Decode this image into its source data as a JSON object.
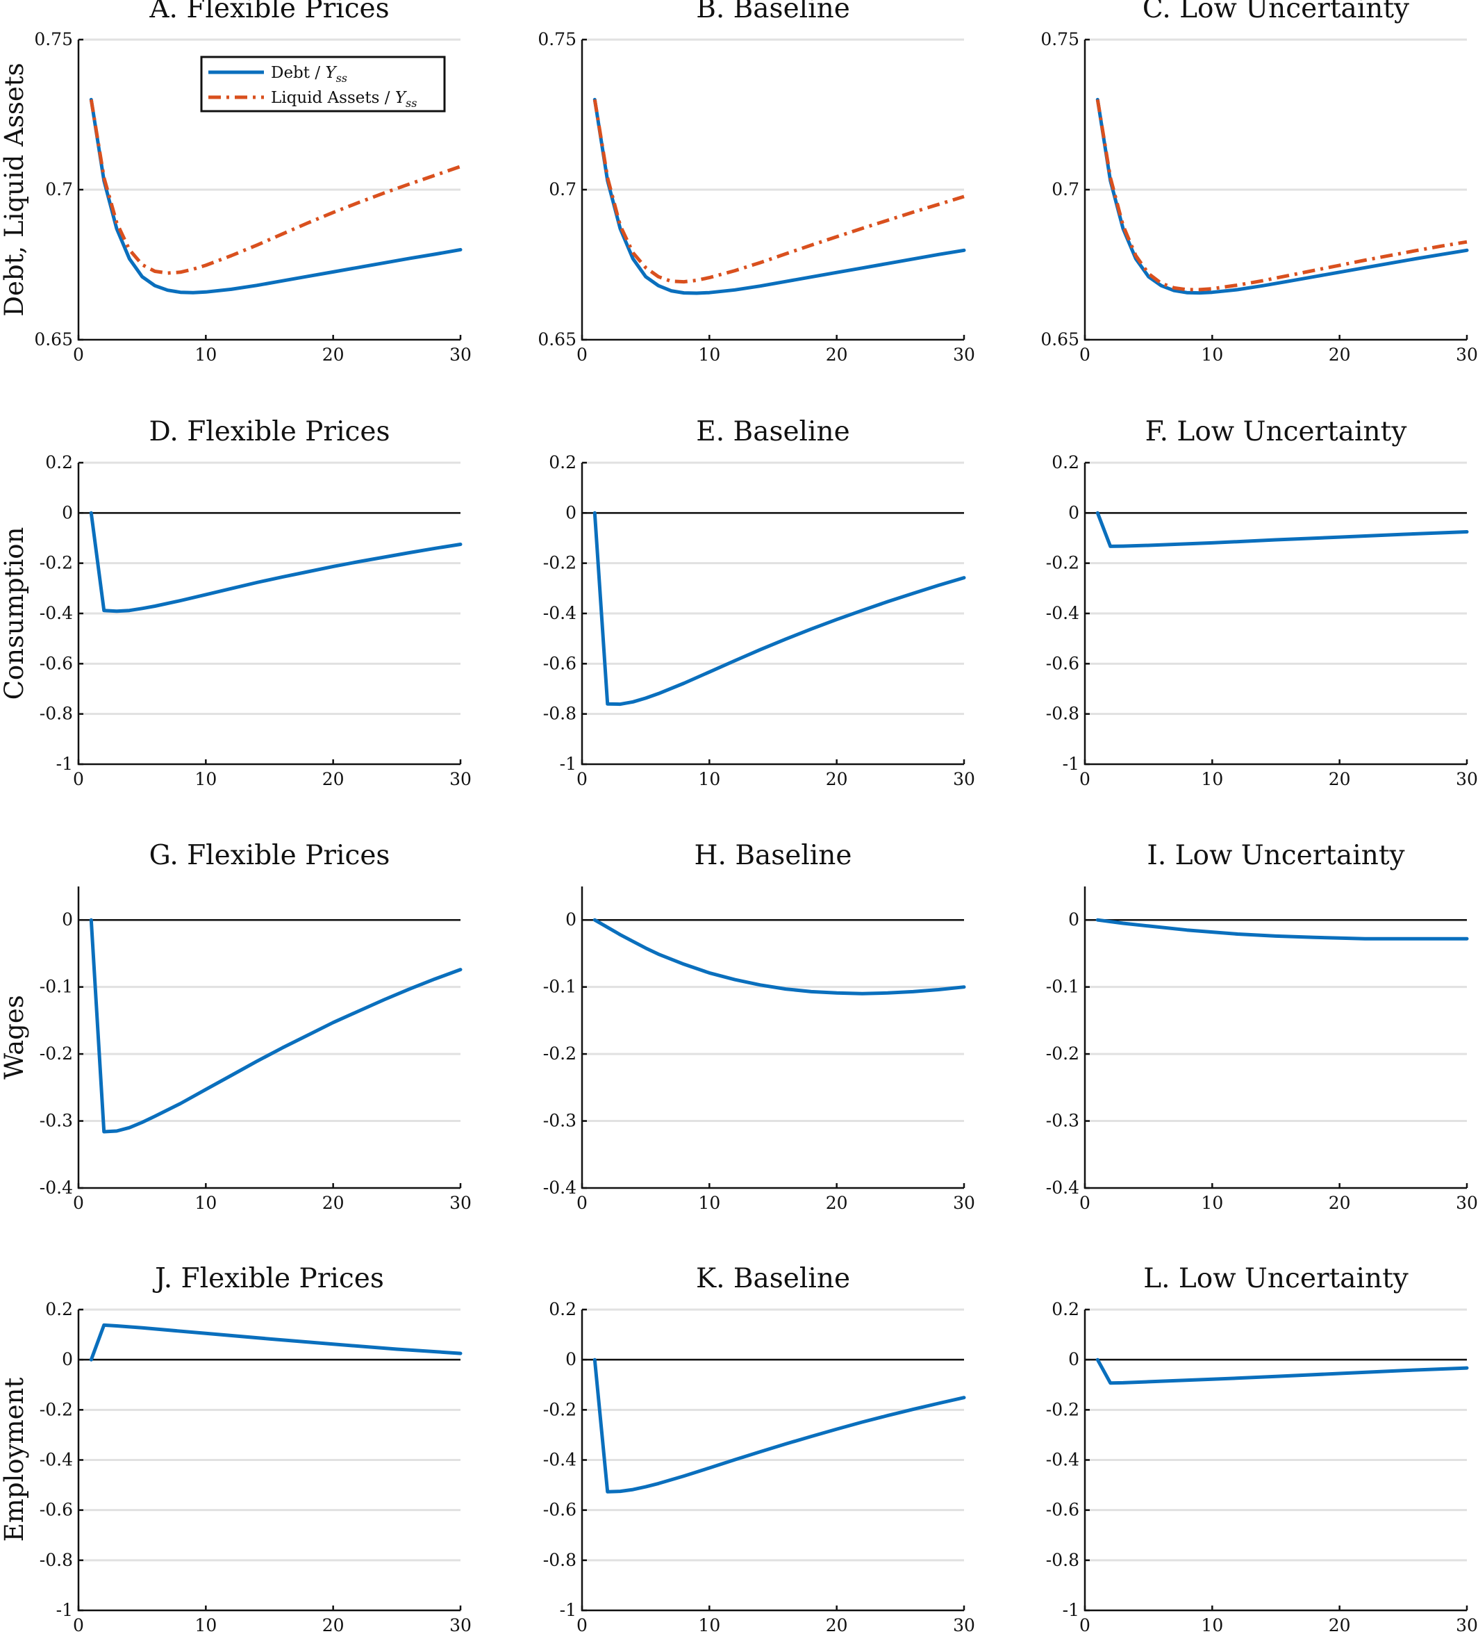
{
  "colors": {
    "debt": "#0a6fbd",
    "liquid_assets": "#d9501e"
  },
  "legend": [
    {
      "series": "debt",
      "text": "Debt / ",
      "sym": "Y",
      "sub": "ss",
      "style": "solid"
    },
    {
      "series": "liquid_assets",
      "text": "Liquid Assets / ",
      "sym": "Y",
      "sub": "ss",
      "style": "dashdot"
    }
  ],
  "legend_placement": "top-center of panel A",
  "row_labels": [
    "Debt, Liquid Assets",
    "Consumption",
    "Wages",
    "Employment"
  ],
  "chart_data": [
    {
      "panel": "A",
      "title": "A. Flexible Prices",
      "type": "line",
      "xlim": [
        0,
        30
      ],
      "ylim": [
        0.65,
        0.75
      ],
      "xticks": [
        0,
        10,
        20,
        30
      ],
      "yticks": [
        0.65,
        0.7,
        0.75
      ],
      "ytick_labels": [
        "0.65",
        "0.7",
        "0.75"
      ],
      "zero_line": false,
      "grid": "horizontal",
      "x": [
        1,
        2,
        3,
        4,
        5,
        6,
        7,
        8,
        9,
        10,
        12,
        14,
        16,
        18,
        20,
        22,
        24,
        26,
        28,
        30
      ],
      "series": [
        {
          "key": "debt",
          "values": [
            0.73,
            0.703,
            0.687,
            0.677,
            0.671,
            0.668,
            0.6665,
            0.6658,
            0.6657,
            0.6659,
            0.6668,
            0.6681,
            0.6696,
            0.6711,
            0.6726,
            0.6741,
            0.6756,
            0.6771,
            0.6785,
            0.68
          ]
        },
        {
          "key": "liquid_assets",
          "values": [
            0.73,
            0.704,
            0.689,
            0.68,
            0.675,
            0.6728,
            0.6722,
            0.6725,
            0.6735,
            0.6748,
            0.678,
            0.6815,
            0.6852,
            0.6889,
            0.6924,
            0.6957,
            0.6989,
            0.7019,
            0.7048,
            0.7077
          ]
        }
      ]
    },
    {
      "panel": "B",
      "title": "B. Baseline",
      "type": "line",
      "xlim": [
        0,
        30
      ],
      "ylim": [
        0.65,
        0.75
      ],
      "xticks": [
        0,
        10,
        20,
        30
      ],
      "yticks": [
        0.65,
        0.7,
        0.75
      ],
      "ytick_labels": [
        "0.65",
        "0.7",
        "0.75"
      ],
      "zero_line": false,
      "grid": "horizontal",
      "x": [
        1,
        2,
        3,
        4,
        5,
        6,
        7,
        8,
        9,
        10,
        12,
        14,
        16,
        18,
        20,
        22,
        24,
        26,
        28,
        30
      ],
      "series": [
        {
          "key": "debt",
          "values": [
            0.73,
            0.703,
            0.687,
            0.677,
            0.671,
            0.668,
            0.6663,
            0.6656,
            0.6655,
            0.6657,
            0.6666,
            0.6679,
            0.6694,
            0.6709,
            0.6724,
            0.6739,
            0.6754,
            0.6769,
            0.6784,
            0.6798
          ]
        },
        {
          "key": "liquid_assets",
          "values": [
            0.73,
            0.704,
            0.688,
            0.679,
            0.674,
            0.671,
            0.6695,
            0.6693,
            0.6698,
            0.6707,
            0.673,
            0.6757,
            0.6786,
            0.6815,
            0.6843,
            0.6871,
            0.6898,
            0.6925,
            0.6951,
            0.6977
          ]
        }
      ]
    },
    {
      "panel": "C",
      "title": "C. Low Uncertainty",
      "type": "line",
      "xlim": [
        0,
        30
      ],
      "ylim": [
        0.65,
        0.75
      ],
      "xticks": [
        0,
        10,
        20,
        30
      ],
      "yticks": [
        0.65,
        0.7,
        0.75
      ],
      "ytick_labels": [
        "0.65",
        "0.7",
        "0.75"
      ],
      "zero_line": false,
      "grid": "horizontal",
      "x": [
        1,
        2,
        3,
        4,
        5,
        6,
        7,
        8,
        9,
        10,
        12,
        14,
        16,
        18,
        20,
        22,
        24,
        26,
        28,
        30
      ],
      "series": [
        {
          "key": "debt",
          "values": [
            0.73,
            0.703,
            0.687,
            0.677,
            0.671,
            0.668,
            0.6664,
            0.6657,
            0.6656,
            0.6658,
            0.6667,
            0.668,
            0.6695,
            0.671,
            0.6725,
            0.674,
            0.6755,
            0.677,
            0.6784,
            0.6798
          ]
        },
        {
          "key": "liquid_assets",
          "values": [
            0.73,
            0.704,
            0.688,
            0.678,
            0.672,
            0.6688,
            0.6673,
            0.6667,
            0.6667,
            0.667,
            0.6682,
            0.6697,
            0.6714,
            0.6731,
            0.6748,
            0.6765,
            0.6781,
            0.6797,
            0.6812,
            0.6826
          ]
        }
      ]
    },
    {
      "panel": "D",
      "title": "D. Flexible Prices",
      "type": "line",
      "xlim": [
        0,
        30
      ],
      "ylim": [
        -1,
        0.2
      ],
      "xticks": [
        0,
        10,
        20,
        30
      ],
      "yticks": [
        -1,
        -0.8,
        -0.6,
        -0.4,
        -0.2,
        0,
        0.2
      ],
      "ytick_labels": [
        "-1",
        "-0.8",
        "-0.6",
        "-0.4",
        "-0.2",
        "0",
        "0.2"
      ],
      "zero_line": true,
      "grid": "horizontal",
      "x": [
        1,
        2,
        3,
        4,
        5,
        6,
        8,
        10,
        12,
        14,
        16,
        18,
        20,
        22,
        24,
        26,
        28,
        30
      ],
      "series": [
        {
          "key": "debt",
          "values": [
            0,
            -0.388,
            -0.391,
            -0.388,
            -0.38,
            -0.371,
            -0.349,
            -0.325,
            -0.301,
            -0.277,
            -0.255,
            -0.234,
            -0.213,
            -0.194,
            -0.176,
            -0.158,
            -0.141,
            -0.125
          ]
        }
      ]
    },
    {
      "panel": "E",
      "title": "E. Baseline",
      "type": "line",
      "xlim": [
        0,
        30
      ],
      "ylim": [
        -1,
        0.2
      ],
      "xticks": [
        0,
        10,
        20,
        30
      ],
      "yticks": [
        -1,
        -0.8,
        -0.6,
        -0.4,
        -0.2,
        0,
        0.2
      ],
      "ytick_labels": [
        "-1",
        "-0.8",
        "-0.6",
        "-0.4",
        "-0.2",
        "0",
        "0.2"
      ],
      "zero_line": true,
      "grid": "horizontal",
      "x": [
        1,
        2,
        3,
        4,
        5,
        6,
        8,
        10,
        12,
        14,
        16,
        18,
        20,
        22,
        24,
        26,
        28,
        30
      ],
      "series": [
        {
          "key": "debt",
          "values": [
            0,
            -0.76,
            -0.761,
            -0.752,
            -0.737,
            -0.719,
            -0.678,
            -0.633,
            -0.588,
            -0.544,
            -0.502,
            -0.462,
            -0.424,
            -0.388,
            -0.353,
            -0.32,
            -0.288,
            -0.258
          ]
        }
      ]
    },
    {
      "panel": "F",
      "title": "F. Low Uncertainty",
      "type": "line",
      "xlim": [
        0,
        30
      ],
      "ylim": [
        -1,
        0.2
      ],
      "xticks": [
        0,
        10,
        20,
        30
      ],
      "yticks": [
        -1,
        -0.8,
        -0.6,
        -0.4,
        -0.2,
        0,
        0.2
      ],
      "ytick_labels": [
        "-1",
        "-0.8",
        "-0.6",
        "-0.4",
        "-0.2",
        "0",
        "0.2"
      ],
      "zero_line": true,
      "grid": "horizontal",
      "x": [
        1,
        2,
        3,
        5,
        10,
        15,
        20,
        25,
        30
      ],
      "series": [
        {
          "key": "debt",
          "values": [
            0,
            -0.133,
            -0.132,
            -0.129,
            -0.119,
            -0.107,
            -0.096,
            -0.085,
            -0.075
          ]
        }
      ]
    },
    {
      "panel": "G",
      "title": "G. Flexible Prices",
      "type": "line",
      "xlim": [
        0,
        30
      ],
      "ylim": [
        -0.4,
        0.05
      ],
      "xticks": [
        0,
        10,
        20,
        30
      ],
      "yticks": [
        -0.4,
        -0.3,
        -0.2,
        -0.1,
        0
      ],
      "ytick_labels": [
        "-0.4",
        "-0.3",
        "-0.2",
        "-0.1",
        "0"
      ],
      "zero_line": true,
      "grid": "horizontal",
      "x": [
        1,
        2,
        3,
        4,
        5,
        6,
        8,
        10,
        12,
        14,
        16,
        18,
        20,
        22,
        24,
        26,
        28,
        30
      ],
      "series": [
        {
          "key": "debt",
          "values": [
            0,
            -0.316,
            -0.315,
            -0.31,
            -0.302,
            -0.293,
            -0.274,
            -0.253,
            -0.232,
            -0.211,
            -0.191,
            -0.172,
            -0.153,
            -0.136,
            -0.119,
            -0.103,
            -0.088,
            -0.074
          ]
        }
      ]
    },
    {
      "panel": "H",
      "title": "H. Baseline",
      "type": "line",
      "xlim": [
        0,
        30
      ],
      "ylim": [
        -0.4,
        0.05
      ],
      "xticks": [
        0,
        10,
        20,
        30
      ],
      "yticks": [
        -0.4,
        -0.3,
        -0.2,
        -0.1,
        0
      ],
      "ytick_labels": [
        "-0.4",
        "-0.3",
        "-0.2",
        "-0.1",
        "0"
      ],
      "zero_line": true,
      "grid": "horizontal",
      "x": [
        1,
        2,
        3,
        4,
        5,
        6,
        8,
        10,
        12,
        14,
        16,
        18,
        20,
        22,
        24,
        26,
        28,
        30
      ],
      "series": [
        {
          "key": "debt",
          "values": [
            0,
            -0.011,
            -0.022,
            -0.032,
            -0.042,
            -0.051,
            -0.066,
            -0.079,
            -0.089,
            -0.097,
            -0.103,
            -0.107,
            -0.109,
            -0.11,
            -0.109,
            -0.107,
            -0.104,
            -0.1
          ]
        }
      ]
    },
    {
      "panel": "I",
      "title": "I. Low Uncertainty",
      "type": "line",
      "xlim": [
        0,
        30
      ],
      "ylim": [
        -0.4,
        0.05
      ],
      "xticks": [
        0,
        10,
        20,
        30
      ],
      "yticks": [
        -0.4,
        -0.3,
        -0.2,
        -0.1,
        0
      ],
      "ytick_labels": [
        "-0.4",
        "-0.3",
        "-0.2",
        "-0.1",
        "0"
      ],
      "zero_line": true,
      "grid": "horizontal",
      "x": [
        1,
        3,
        5,
        8,
        10,
        12,
        15,
        18,
        20,
        22,
        25,
        28,
        30
      ],
      "series": [
        {
          "key": "debt",
          "values": [
            0,
            -0.005,
            -0.009,
            -0.015,
            -0.018,
            -0.021,
            -0.024,
            -0.026,
            -0.027,
            -0.028,
            -0.028,
            -0.028,
            -0.028
          ]
        }
      ]
    },
    {
      "panel": "J",
      "title": "J. Flexible Prices",
      "type": "line",
      "xlim": [
        0,
        30
      ],
      "ylim": [
        -1,
        0.2
      ],
      "xticks": [
        0,
        10,
        20,
        30
      ],
      "yticks": [
        -1,
        -0.8,
        -0.6,
        -0.4,
        -0.2,
        0,
        0.2
      ],
      "ytick_labels": [
        "-1",
        "-0.8",
        "-0.6",
        "-0.4",
        "-0.2",
        "0",
        "0.2"
      ],
      "zero_line": true,
      "grid": "horizontal",
      "x": [
        1,
        2,
        3,
        5,
        10,
        15,
        20,
        25,
        30
      ],
      "series": [
        {
          "key": "debt",
          "values": [
            0,
            0.138,
            0.135,
            0.127,
            0.105,
            0.083,
            0.062,
            0.042,
            0.025
          ]
        }
      ]
    },
    {
      "panel": "K",
      "title": "K. Baseline",
      "type": "line",
      "xlim": [
        0,
        30
      ],
      "ylim": [
        -1,
        0.2
      ],
      "xticks": [
        0,
        10,
        20,
        30
      ],
      "yticks": [
        -1,
        -0.8,
        -0.6,
        -0.4,
        -0.2,
        0,
        0.2
      ],
      "ytick_labels": [
        "-1",
        "-0.8",
        "-0.6",
        "-0.4",
        "-0.2",
        "0",
        "0.2"
      ],
      "zero_line": true,
      "grid": "horizontal",
      "x": [
        1,
        2,
        3,
        4,
        5,
        6,
        8,
        10,
        12,
        14,
        16,
        18,
        20,
        22,
        24,
        26,
        28,
        30
      ],
      "series": [
        {
          "key": "debt",
          "values": [
            0,
            -0.527,
            -0.525,
            -0.518,
            -0.507,
            -0.494,
            -0.464,
            -0.432,
            -0.399,
            -0.367,
            -0.336,
            -0.306,
            -0.277,
            -0.249,
            -0.223,
            -0.198,
            -0.174,
            -0.151
          ]
        }
      ]
    },
    {
      "panel": "L",
      "title": "L. Low Uncertainty",
      "type": "line",
      "xlim": [
        0,
        30
      ],
      "ylim": [
        -1,
        0.2
      ],
      "xticks": [
        0,
        10,
        20,
        30
      ],
      "yticks": [
        -1,
        -0.8,
        -0.6,
        -0.4,
        -0.2,
        0,
        0.2
      ],
      "ytick_labels": [
        "-1",
        "-0.8",
        "-0.6",
        "-0.4",
        "-0.2",
        "0",
        "0.2"
      ],
      "zero_line": true,
      "grid": "horizontal",
      "x": [
        1,
        2,
        3,
        5,
        10,
        15,
        20,
        25,
        30
      ],
      "series": [
        {
          "key": "debt",
          "values": [
            0,
            -0.093,
            -0.092,
            -0.088,
            -0.078,
            -0.067,
            -0.055,
            -0.043,
            -0.033
          ]
        }
      ]
    }
  ]
}
